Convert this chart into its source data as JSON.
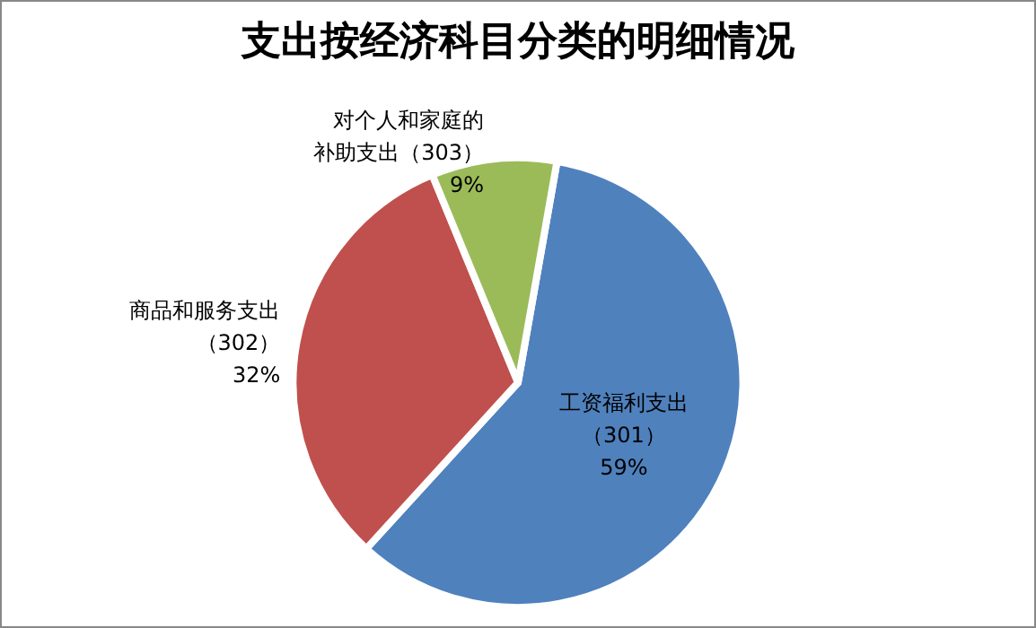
{
  "chart_data": {
    "type": "pie",
    "title": "支出按经济科目分类的明细情况",
    "categories": [
      "工资福利支出（301）",
      "商品和服务支出（302）",
      "对个人和家庭的补助支出（303）"
    ],
    "values": [
      59,
      32,
      9
    ],
    "colors": [
      "#4f81bd",
      "#c0504d",
      "#9bbb59"
    ],
    "value_labels": [
      "59%",
      "32%",
      "9%"
    ]
  }
}
